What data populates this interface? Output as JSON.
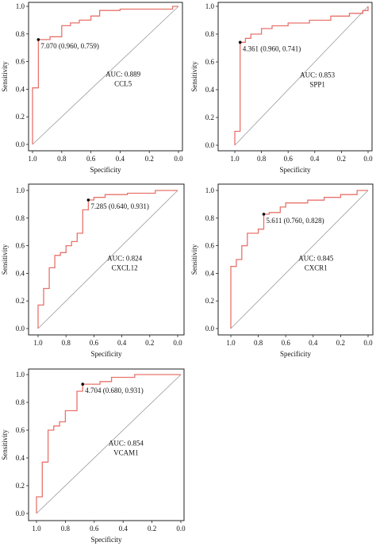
{
  "colors": {
    "roc_line": "#e8736c",
    "diagonal": "#9a9a9a",
    "frame": "#222222",
    "cutoff_point": "#000000"
  },
  "chart_data": [
    {
      "type": "line",
      "gene": "CCL5",
      "xlabel": "Specificity",
      "ylabel": "Sensitivity",
      "xlim": [
        1.0,
        0.0
      ],
      "ylim": [
        0.0,
        1.0
      ],
      "x_ticks": [
        "1.0",
        "0.8",
        "0.6",
        "0.4",
        "0.2",
        "0.0"
      ],
      "y_ticks": [
        "0.0",
        "0.2",
        "0.4",
        "0.6",
        "0.8",
        "1.0"
      ],
      "auc_text": "AUC: 0.889",
      "gene_text": "CCL5",
      "cutoff_text": "7.070 (0.960, 0.759)",
      "cutoff": {
        "x": 0.96,
        "y": 0.759
      },
      "diagonal": true,
      "points": [
        [
          1.0,
          0.0
        ],
        [
          1.0,
          0.41
        ],
        [
          0.96,
          0.41
        ],
        [
          0.96,
          0.759
        ],
        [
          0.88,
          0.759
        ],
        [
          0.88,
          0.78
        ],
        [
          0.8,
          0.78
        ],
        [
          0.8,
          0.86
        ],
        [
          0.74,
          0.86
        ],
        [
          0.74,
          0.88
        ],
        [
          0.68,
          0.88
        ],
        [
          0.68,
          0.9
        ],
        [
          0.6,
          0.9
        ],
        [
          0.6,
          0.93
        ],
        [
          0.54,
          0.93
        ],
        [
          0.54,
          0.97
        ],
        [
          0.4,
          0.97
        ],
        [
          0.4,
          0.98
        ],
        [
          0.04,
          0.98
        ],
        [
          0.04,
          1.0
        ],
        [
          0.0,
          1.0
        ]
      ]
    },
    {
      "type": "line",
      "gene": "SPP1",
      "xlabel": "Specificity",
      "ylabel": "Sensitivity",
      "xlim": [
        1.0,
        0.0
      ],
      "ylim": [
        0.0,
        1.0
      ],
      "x_ticks": [
        "1.0",
        "0.8",
        "0.6",
        "0.4",
        "0.2",
        "0.0"
      ],
      "y_ticks": [
        "0.0",
        "0.2",
        "0.4",
        "0.6",
        "0.8",
        "1.0"
      ],
      "auc_text": "AUC: 0.853",
      "gene_text": "SPP1",
      "cutoff_text": "4.361 (0.960, 0.741)",
      "cutoff": {
        "x": 0.96,
        "y": 0.741
      },
      "diagonal": true,
      "points": [
        [
          1.0,
          0.0
        ],
        [
          1.0,
          0.1
        ],
        [
          0.96,
          0.1
        ],
        [
          0.96,
          0.741
        ],
        [
          0.92,
          0.741
        ],
        [
          0.92,
          0.77
        ],
        [
          0.88,
          0.77
        ],
        [
          0.88,
          0.8
        ],
        [
          0.8,
          0.8
        ],
        [
          0.8,
          0.84
        ],
        [
          0.72,
          0.84
        ],
        [
          0.72,
          0.86
        ],
        [
          0.6,
          0.86
        ],
        [
          0.6,
          0.88
        ],
        [
          0.44,
          0.88
        ],
        [
          0.44,
          0.9
        ],
        [
          0.28,
          0.9
        ],
        [
          0.28,
          0.93
        ],
        [
          0.14,
          0.93
        ],
        [
          0.14,
          0.95
        ],
        [
          0.04,
          0.95
        ],
        [
          0.04,
          0.97
        ],
        [
          0.0,
          0.97
        ],
        [
          0.0,
          1.0
        ]
      ]
    },
    {
      "type": "line",
      "gene": "CXCL12",
      "xlabel": "Specificity",
      "ylabel": "Sensitivity",
      "xlim": [
        1.0,
        0.0
      ],
      "ylim": [
        0.0,
        1.0
      ],
      "x_ticks": [
        "1.0",
        "0.8",
        "0.6",
        "0.4",
        "0.2",
        "0.0"
      ],
      "y_ticks": [
        "0.0",
        "0.2",
        "0.4",
        "0.6",
        "0.8",
        "1.0"
      ],
      "auc_text": "AUC: 0.824",
      "gene_text": "CXCL12",
      "cutoff_text": "7.285 (0.640, 0.931)",
      "cutoff": {
        "x": 0.64,
        "y": 0.931
      },
      "diagonal": true,
      "points": [
        [
          1.0,
          0.0
        ],
        [
          1.0,
          0.17
        ],
        [
          0.96,
          0.17
        ],
        [
          0.96,
          0.29
        ],
        [
          0.92,
          0.29
        ],
        [
          0.92,
          0.44
        ],
        [
          0.88,
          0.44
        ],
        [
          0.88,
          0.53
        ],
        [
          0.84,
          0.53
        ],
        [
          0.84,
          0.55
        ],
        [
          0.8,
          0.55
        ],
        [
          0.8,
          0.6
        ],
        [
          0.76,
          0.6
        ],
        [
          0.76,
          0.63
        ],
        [
          0.72,
          0.63
        ],
        [
          0.72,
          0.69
        ],
        [
          0.68,
          0.69
        ],
        [
          0.68,
          0.86
        ],
        [
          0.64,
          0.86
        ],
        [
          0.64,
          0.931
        ],
        [
          0.6,
          0.931
        ],
        [
          0.6,
          0.95
        ],
        [
          0.52,
          0.95
        ],
        [
          0.52,
          0.97
        ],
        [
          0.36,
          0.97
        ],
        [
          0.36,
          0.98
        ],
        [
          0.16,
          0.98
        ],
        [
          0.16,
          1.0
        ],
        [
          0.0,
          1.0
        ]
      ]
    },
    {
      "type": "line",
      "gene": "CXCR1",
      "xlabel": "Specificity",
      "ylabel": "Sensitivity",
      "xlim": [
        1.0,
        0.0
      ],
      "ylim": [
        0.0,
        1.0
      ],
      "x_ticks": [
        "1.0",
        "0.8",
        "0.6",
        "0.4",
        "0.2",
        "0.0"
      ],
      "y_ticks": [
        "0.0",
        "0.2",
        "0.4",
        "0.6",
        "0.8",
        "1.0"
      ],
      "auc_text": "AUC: 0.845",
      "gene_text": "CXCR1",
      "cutoff_text": "5.611 (0.760, 0.828)",
      "cutoff": {
        "x": 0.76,
        "y": 0.828
      },
      "diagonal": true,
      "points": [
        [
          1.0,
          0.0
        ],
        [
          1.0,
          0.45
        ],
        [
          0.96,
          0.45
        ],
        [
          0.96,
          0.5
        ],
        [
          0.92,
          0.5
        ],
        [
          0.92,
          0.6
        ],
        [
          0.88,
          0.6
        ],
        [
          0.88,
          0.69
        ],
        [
          0.8,
          0.69
        ],
        [
          0.8,
          0.72
        ],
        [
          0.76,
          0.72
        ],
        [
          0.76,
          0.828
        ],
        [
          0.72,
          0.828
        ],
        [
          0.72,
          0.84
        ],
        [
          0.64,
          0.84
        ],
        [
          0.64,
          0.88
        ],
        [
          0.6,
          0.88
        ],
        [
          0.6,
          0.91
        ],
        [
          0.44,
          0.91
        ],
        [
          0.44,
          0.93
        ],
        [
          0.32,
          0.93
        ],
        [
          0.32,
          0.95
        ],
        [
          0.2,
          0.95
        ],
        [
          0.2,
          0.97
        ],
        [
          0.08,
          0.97
        ],
        [
          0.08,
          1.0
        ],
        [
          0.0,
          1.0
        ]
      ]
    },
    {
      "type": "line",
      "gene": "VCAM1",
      "xlabel": "Specificity",
      "ylabel": "Sensitivity",
      "xlim": [
        1.0,
        0.0
      ],
      "ylim": [
        0.0,
        1.0
      ],
      "x_ticks": [
        "1.0",
        "0.8",
        "0.6",
        "0.4",
        "0.2",
        "0.0"
      ],
      "y_ticks": [
        "0.0",
        "0.2",
        "0.4",
        "0.6",
        "0.8",
        "1.0"
      ],
      "auc_text": "AUC: 0.854",
      "gene_text": "VCAM1",
      "cutoff_text": "4.704 (0.680, 0.931)",
      "cutoff": {
        "x": 0.68,
        "y": 0.931
      },
      "diagonal": true,
      "points": [
        [
          1.0,
          0.0
        ],
        [
          1.0,
          0.12
        ],
        [
          0.96,
          0.12
        ],
        [
          0.96,
          0.37
        ],
        [
          0.92,
          0.37
        ],
        [
          0.92,
          0.6
        ],
        [
          0.88,
          0.6
        ],
        [
          0.88,
          0.63
        ],
        [
          0.84,
          0.63
        ],
        [
          0.84,
          0.66
        ],
        [
          0.8,
          0.66
        ],
        [
          0.8,
          0.74
        ],
        [
          0.72,
          0.74
        ],
        [
          0.72,
          0.88
        ],
        [
          0.68,
          0.88
        ],
        [
          0.68,
          0.931
        ],
        [
          0.56,
          0.931
        ],
        [
          0.56,
          0.95
        ],
        [
          0.48,
          0.95
        ],
        [
          0.48,
          0.98
        ],
        [
          0.32,
          0.98
        ],
        [
          0.32,
          1.0
        ],
        [
          0.0,
          1.0
        ]
      ]
    }
  ]
}
